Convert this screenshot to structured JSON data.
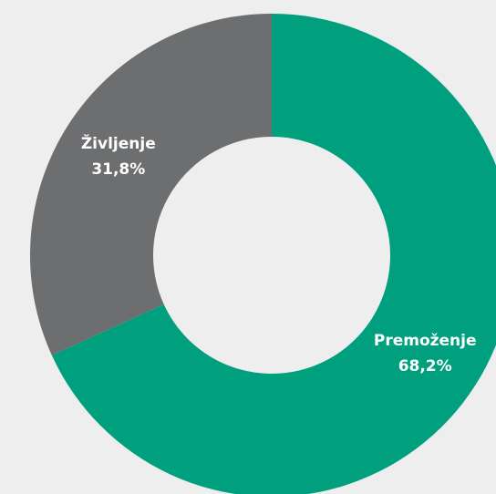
{
  "chart_data": {
    "type": "donut",
    "categories": [
      "Premoženje",
      "Življenje"
    ],
    "values": [
      68.2,
      31.8
    ],
    "value_labels": [
      "68,2%",
      "31,8%"
    ],
    "colors": [
      "#00a07e",
      "#6d6e70"
    ]
  }
}
